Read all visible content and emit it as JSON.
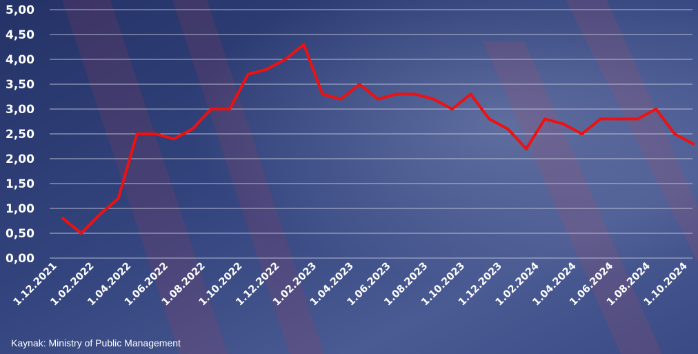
{
  "chart_data": {
    "type": "line",
    "ylim": [
      0,
      5
    ],
    "y_ticks": [
      "0,00",
      "0,50",
      "1,00",
      "1,50",
      "2,00",
      "2,50",
      "3,00",
      "3,50",
      "4,00",
      "4,50",
      "5,00"
    ],
    "x_tick_labels": [
      "1.12.2021",
      "1.02.2022",
      "1.04.2022",
      "1.06.2022",
      "1.08.2022",
      "1.10.2022",
      "1.12.2022",
      "1.02.2023",
      "1.04.2023",
      "1.06.2023",
      "1.08.2023",
      "1.10.2023",
      "1.12.2023",
      "1.02.2024",
      "1.04.2024",
      "1.06.2024",
      "1.08.2024",
      "1.10.2024"
    ],
    "grid": true,
    "series": [
      {
        "color": "#ee1111",
        "x": [
          "2021-12",
          "2022-01",
          "2022-02",
          "2022-03",
          "2022-04",
          "2022-05",
          "2022-06",
          "2022-07",
          "2022-08",
          "2022-09",
          "2022-10",
          "2022-11",
          "2022-12",
          "2023-01",
          "2023-02",
          "2023-03",
          "2023-04",
          "2023-05",
          "2023-06",
          "2023-07",
          "2023-08",
          "2023-09",
          "2023-10",
          "2023-11",
          "2023-12",
          "2024-01",
          "2024-02",
          "2024-03",
          "2024-04",
          "2024-05",
          "2024-06",
          "2024-07",
          "2024-08",
          "2024-09",
          "2024-10"
        ],
        "values": [
          0.8,
          0.5,
          0.88,
          1.2,
          2.5,
          2.5,
          2.4,
          2.6,
          3.0,
          3.0,
          3.7,
          3.8,
          4.0,
          4.3,
          3.3,
          3.2,
          3.5,
          3.2,
          3.3,
          3.3,
          3.2,
          3.0,
          3.3,
          2.8,
          2.6,
          2.2,
          2.8,
          2.7,
          2.5,
          2.8,
          2.8,
          2.8,
          3.0,
          2.5,
          2.3
        ]
      }
    ]
  },
  "footer": {
    "source": "Kaynak: Ministry of Public Management"
  },
  "colors": {
    "background": "#2e3f78",
    "grid": "#c9cfe0",
    "line": "#ee1111",
    "text": "#ffffff"
  }
}
